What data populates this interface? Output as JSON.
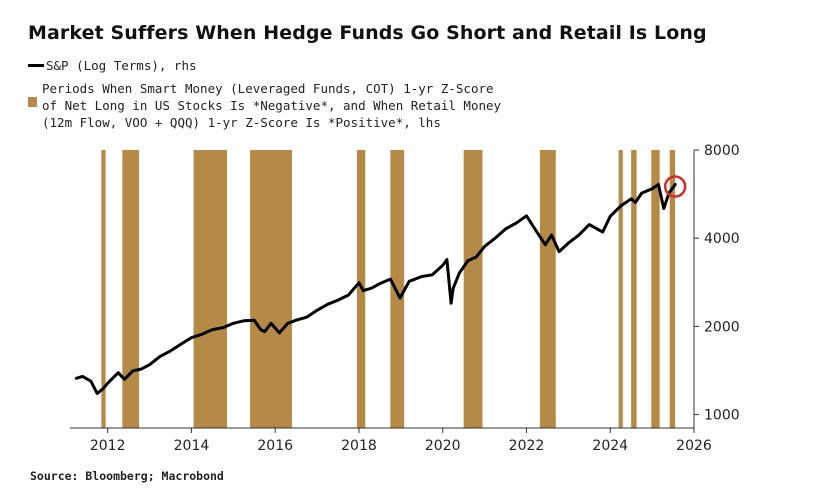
{
  "chart_data": {
    "type": "line",
    "title": "Market Suffers When Hedge Funds Go Short and Retail Is Long",
    "series": [
      {
        "name": "S&P (Log Terms), rhs",
        "axis": "right",
        "x": [
          2011.25,
          2011.4,
          2011.6,
          2011.75,
          2011.9,
          2012.0,
          2012.25,
          2012.4,
          2012.6,
          2012.8,
          2013.0,
          2013.25,
          2013.5,
          2013.75,
          2014.0,
          2014.25,
          2014.5,
          2014.75,
          2015.0,
          2015.25,
          2015.5,
          2015.65,
          2015.75,
          2015.9,
          2016.1,
          2016.3,
          2016.5,
          2016.75,
          2017.0,
          2017.25,
          2017.5,
          2017.75,
          2018.0,
          2018.1,
          2018.3,
          2018.5,
          2018.75,
          2018.98,
          2019.2,
          2019.5,
          2019.75,
          2020.0,
          2020.1,
          2020.2,
          2020.25,
          2020.4,
          2020.6,
          2020.8,
          2021.0,
          2021.25,
          2021.5,
          2021.75,
          2022.0,
          2022.2,
          2022.45,
          2022.6,
          2022.78,
          2023.0,
          2023.25,
          2023.5,
          2023.82,
          2024.0,
          2024.25,
          2024.5,
          2024.6,
          2024.75,
          2025.0,
          2025.15,
          2025.28,
          2025.4,
          2025.55
        ],
        "values": [
          1330,
          1350,
          1300,
          1180,
          1230,
          1280,
          1390,
          1320,
          1410,
          1430,
          1480,
          1580,
          1650,
          1740,
          1830,
          1880,
          1950,
          1980,
          2050,
          2090,
          2100,
          1950,
          1920,
          2050,
          1900,
          2050,
          2100,
          2150,
          2270,
          2380,
          2460,
          2560,
          2820,
          2650,
          2700,
          2800,
          2900,
          2500,
          2850,
          2960,
          3000,
          3230,
          3380,
          2400,
          2700,
          3050,
          3350,
          3450,
          3750,
          4000,
          4300,
          4500,
          4770,
          4300,
          3800,
          4100,
          3600,
          3850,
          4100,
          4450,
          4200,
          4750,
          5150,
          5450,
          5300,
          5700,
          5900,
          6100,
          5050,
          5700,
          6100
        ]
      },
      {
        "name": "Periods When Smart Money (Leveraged Funds, COT) 1-yr Z-Score of Net Long in US Stocks Is *Negative*, and When Retail Money (12m Flow, VOO + QQQ) 1-yr Z-Score Is *Positive*, lhs",
        "axis": "left",
        "type": "bar",
        "periods": [
          [
            2011.85,
            2011.95
          ],
          [
            2012.35,
            2012.75
          ],
          [
            2014.05,
            2014.85
          ],
          [
            2015.4,
            2016.4
          ],
          [
            2017.95,
            2018.15
          ],
          [
            2018.75,
            2019.08
          ],
          [
            2020.5,
            2020.95
          ],
          [
            2022.32,
            2022.7
          ],
          [
            2024.2,
            2024.3
          ],
          [
            2024.5,
            2024.63
          ],
          [
            2024.98,
            2025.18
          ],
          [
            2025.42,
            2025.55
          ]
        ]
      }
    ],
    "x_ticks": [
      "2012",
      "2014",
      "2016",
      "2018",
      "2020",
      "2022",
      "2024",
      "2026"
    ],
    "x_tick_values": [
      2012,
      2014,
      2016,
      2018,
      2020,
      2022,
      2024,
      2026
    ],
    "xlim": [
      2011.1,
      2026.0
    ],
    "y_right_ticks": [
      "1000",
      "2000",
      "4000",
      "8000"
    ],
    "y_right_tick_values": [
      1000,
      2000,
      4000,
      8000
    ],
    "y_right_scale": "log",
    "y_right_lim": [
      900,
      8000
    ],
    "legend_placement": "top-left",
    "grid": false,
    "annotation": "red circle around latest S&P value",
    "colors": {
      "line": "#000000",
      "band": "#b58a47",
      "circle": "#d42a2a"
    }
  },
  "legend": {
    "line_label": "S&P (Log Terms), rhs",
    "band_label_lines": [
      "Periods When Smart Money (Leveraged Funds, COT) 1-yr Z-Score",
      "of Net Long in US Stocks Is *Negative*, and When Retail Money",
      "(12m Flow, VOO + QQQ) 1-yr Z-Score Is *Positive*, lhs"
    ]
  },
  "source": "Source: Bloomberg; Macrobond"
}
